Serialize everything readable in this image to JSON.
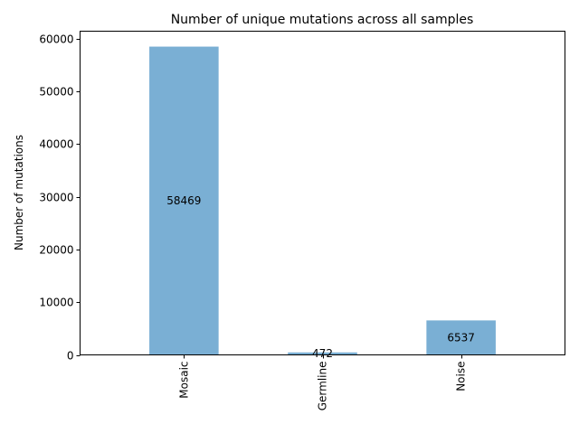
{
  "chart_data": {
    "type": "bar",
    "title": "Number of unique mutations across all samples",
    "xlabel": "",
    "ylabel": "Number of mutations",
    "categories": [
      "Mosaic",
      "Germline",
      "Noise"
    ],
    "values": [
      58469,
      472,
      6537
    ],
    "data_labels": [
      "58469",
      "472",
      "6537"
    ],
    "ylim": [
      0,
      61394
    ],
    "yticks": [
      0,
      10000,
      20000,
      30000,
      40000,
      50000,
      60000
    ],
    "ytick_labels": [
      "0",
      "10000",
      "20000",
      "30000",
      "40000",
      "50000",
      "60000"
    ],
    "bar_color": "#7aafd4",
    "grid": false,
    "legend": "none"
  }
}
